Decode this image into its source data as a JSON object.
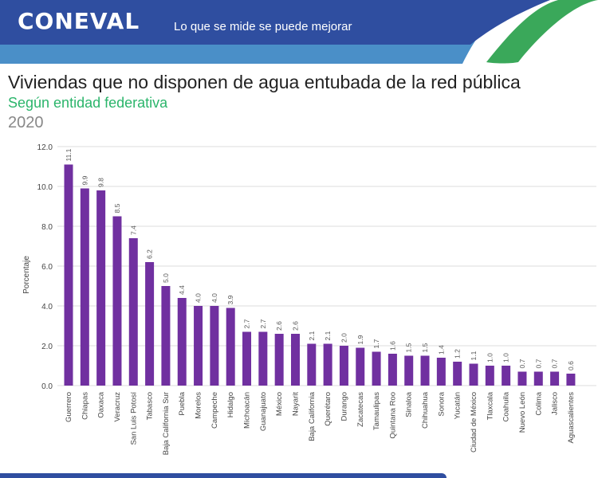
{
  "header": {
    "logo": "CONEVAL",
    "tagline": "Lo que se mide se puede mejorar"
  },
  "title": "Viviendas que no disponen de agua entubada de la red pública",
  "subtitle": "Según entidad federativa",
  "year": "2020",
  "colors": {
    "bar": "#7030a0",
    "header_dark": "#2f4ea0",
    "header_light": "#4a8fc8",
    "header_green": "#3aa85a",
    "subtitle": "#2bb56b"
  },
  "chart_data": {
    "type": "bar",
    "title": "Viviendas que no disponen de agua entubada de la red pública",
    "xlabel": "",
    "ylabel": "Porcentaje",
    "ylim": [
      0,
      12
    ],
    "yticks": [
      "0.0",
      "2.0",
      "4.0",
      "6.0",
      "8.0",
      "10.0",
      "12.0"
    ],
    "grid": true,
    "categories": [
      "Guerrero",
      "Chiapas",
      "Oaxaca",
      "Veracruz",
      "San Luis Potosí",
      "Tabasco",
      "Baja California Sur",
      "Puebla",
      "Morelos",
      "Campeche",
      "Hidalgo",
      "Michoacán",
      "Guanajuato",
      "México",
      "Nayarit",
      "Baja California",
      "Querétaro",
      "Durango",
      "Zacatecas",
      "Tamaulipas",
      "Quintana Roo",
      "Sinaloa",
      "Chihuahua",
      "Sonora",
      "Yucatán",
      "Ciudad de México",
      "Tlaxcala",
      "Coahuila",
      "Nuevo León",
      "Colima",
      "Jalisco",
      "Aguascalientes"
    ],
    "values": [
      11.1,
      9.9,
      9.8,
      8.5,
      7.4,
      6.2,
      5.0,
      4.4,
      4.0,
      4.0,
      3.9,
      2.7,
      2.7,
      2.6,
      2.6,
      2.1,
      2.1,
      2.0,
      1.9,
      1.7,
      1.6,
      1.5,
      1.5,
      1.4,
      1.2,
      1.1,
      1.0,
      1.0,
      0.7,
      0.7,
      0.7,
      0.6
    ],
    "labels": [
      "11.1",
      "9.9",
      "9.8",
      "8.5",
      "7.4",
      "6.2",
      "5.0",
      "4.4",
      "4.0",
      "4.0",
      "3.9",
      "2.7",
      "2.7",
      "2.6",
      "2.6",
      "2.1",
      "2.1",
      "2.0",
      "1.9",
      "1.7",
      "1.6",
      "1.5",
      "1.5",
      "1.4",
      "1.2",
      "1.1",
      "1.0",
      "1.0",
      "0.7",
      "0.7",
      "0.7",
      "0.6"
    ]
  }
}
